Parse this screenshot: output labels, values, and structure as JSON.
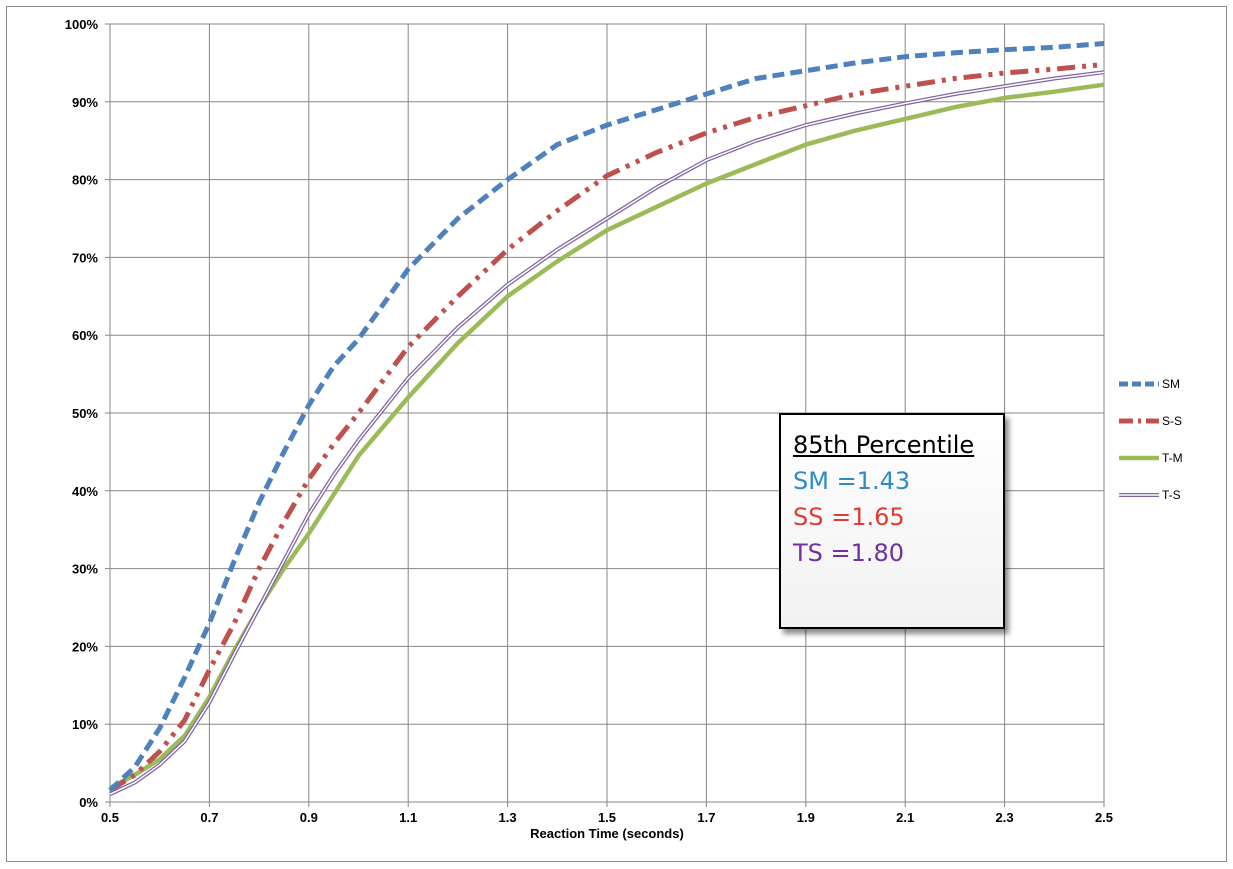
{
  "chart_data": {
    "type": "line",
    "title": "",
    "xlabel": "Reaction Time (seconds)",
    "ylabel": "",
    "xlim": [
      0.5,
      2.5
    ],
    "ylim": [
      0,
      100
    ],
    "x_ticks": [
      "0.5",
      "0.7",
      "0.9",
      "1.1",
      "1.3",
      "1.5",
      "1.7",
      "1.9",
      "2.1",
      "2.3",
      "2.5"
    ],
    "y_ticks": [
      "0%",
      "10%",
      "20%",
      "30%",
      "40%",
      "50%",
      "60%",
      "70%",
      "80%",
      "90%",
      "100%"
    ],
    "grid": true,
    "legend_position": "right",
    "series": [
      {
        "name": "SM",
        "color": "#4f81bd",
        "style": "dashed",
        "x": [
          0.5,
          0.55,
          0.6,
          0.65,
          0.7,
          0.75,
          0.8,
          0.85,
          0.9,
          0.95,
          1.0,
          1.05,
          1.1,
          1.2,
          1.3,
          1.4,
          1.5,
          1.6,
          1.7,
          1.8,
          1.9,
          2.0,
          2.1,
          2.2,
          2.3,
          2.4,
          2.5
        ],
        "y": [
          1.5,
          4.5,
          9.5,
          16,
          23,
          31,
          38.5,
          45,
          51,
          56,
          59.5,
          64,
          68.5,
          75,
          80,
          84.5,
          87,
          89,
          91,
          93,
          94,
          95,
          95.8,
          96.3,
          96.7,
          97,
          97.5
        ]
      },
      {
        "name": "S-S",
        "color": "#c0504d",
        "style": "dash-dot-dot",
        "x": [
          0.5,
          0.55,
          0.6,
          0.65,
          0.7,
          0.75,
          0.8,
          0.85,
          0.9,
          0.95,
          1.0,
          1.1,
          1.2,
          1.3,
          1.4,
          1.5,
          1.6,
          1.7,
          1.8,
          1.9,
          2.0,
          2.1,
          2.2,
          2.3,
          2.4,
          2.5
        ],
        "y": [
          1.5,
          3.5,
          6.5,
          10.5,
          17,
          23,
          30,
          36,
          41.5,
          46,
          50,
          58.5,
          65,
          71,
          76,
          80.5,
          83.5,
          86,
          88,
          89.5,
          91,
          92,
          93,
          93.7,
          94.2,
          94.8
        ]
      },
      {
        "name": "T-M",
        "color": "#9bbb59",
        "style": "solid",
        "x": [
          0.5,
          0.55,
          0.6,
          0.65,
          0.7,
          0.75,
          0.8,
          0.85,
          0.9,
          0.95,
          1.0,
          1.1,
          1.2,
          1.3,
          1.4,
          1.5,
          1.6,
          1.7,
          1.8,
          1.9,
          2.0,
          2.1,
          2.2,
          2.3,
          2.4,
          2.5
        ],
        "y": [
          1.8,
          3.5,
          5.5,
          8.5,
          13.5,
          19.5,
          25,
          30,
          34.5,
          39.5,
          44.5,
          52,
          59,
          65,
          69.5,
          73.5,
          76.5,
          79.5,
          82,
          84.5,
          86.3,
          87.8,
          89.3,
          90.5,
          91.3,
          92.2
        ]
      },
      {
        "name": "T-S",
        "color": "#8064a2",
        "style": "double",
        "x": [
          0.5,
          0.55,
          0.6,
          0.65,
          0.7,
          0.75,
          0.8,
          0.85,
          0.9,
          0.95,
          1.0,
          1.1,
          1.2,
          1.3,
          1.4,
          1.5,
          1.6,
          1.7,
          1.8,
          1.9,
          2.0,
          2.1,
          2.2,
          2.3,
          2.4,
          2.5
        ],
        "y": [
          1.0,
          2.5,
          4.8,
          7.8,
          12.8,
          19,
          25,
          31,
          37,
          42,
          46.5,
          54.5,
          61,
          66.5,
          71,
          75,
          79,
          82.5,
          85,
          87,
          88.5,
          89.8,
          91,
          92,
          93,
          93.8
        ]
      }
    ]
  },
  "annotation": {
    "title": "85th Percentile",
    "lines": [
      {
        "text": "SM =1.43",
        "color": "#2e8bc7"
      },
      {
        "text": "SS =1.65",
        "color": "#e03c31"
      },
      {
        "text": "TS =1.80",
        "color": "#7030a0"
      }
    ]
  }
}
